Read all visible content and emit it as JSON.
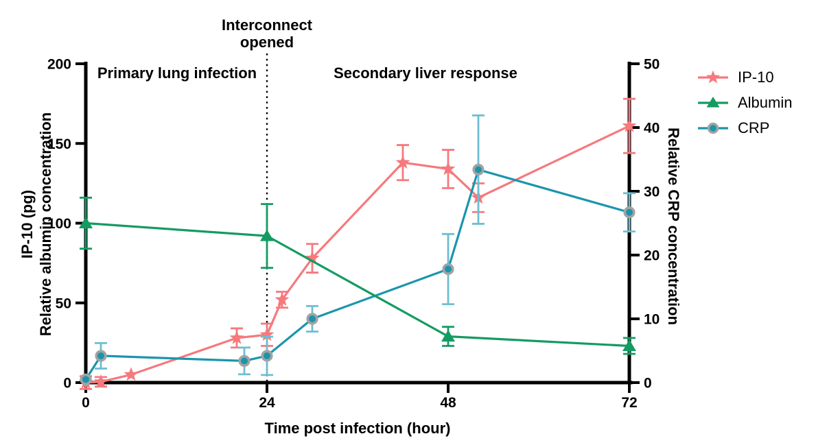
{
  "chart_data": {
    "type": "line",
    "title": "",
    "xlabel": "Time post infection (hour)",
    "ylabel_left_line1": "IP-10 (pg)",
    "ylabel_left_line2": "Relative albumin concentration",
    "ylabel_right": "Relative CRP concentration",
    "xlim": [
      0,
      72
    ],
    "x_ticks": [
      0,
      24,
      48,
      72
    ],
    "ylim_left": [
      0,
      200
    ],
    "yticks_left": [
      0,
      50,
      100,
      150,
      200
    ],
    "ylim_right": [
      0,
      50
    ],
    "yticks_right": [
      0,
      10,
      20,
      30,
      40,
      50
    ],
    "grid": false,
    "legend_position": "top-right",
    "annotations": {
      "region_left": "Primary lung infection",
      "region_right": "Secondary liver response",
      "vline_x": 24,
      "vline_style": "dotted",
      "vline_label_line1": "Interconnect",
      "vline_label_line2": "opened"
    },
    "series": [
      {
        "name": "IP-10",
        "axis": "left",
        "marker": "star",
        "color": "#F5797D",
        "points": [
          {
            "x": 0,
            "y": 0,
            "err": 4
          },
          {
            "x": 2,
            "y": 0.5,
            "err": 3
          },
          {
            "x": 6,
            "y": 5,
            "err": 0
          },
          {
            "x": 20,
            "y": 28,
            "err": 6
          },
          {
            "x": 24,
            "y": 30,
            "err": 7
          },
          {
            "x": 26,
            "y": 52,
            "err": 5
          },
          {
            "x": 30,
            "y": 78,
            "err": 9
          },
          {
            "x": 42,
            "y": 138,
            "err": 11
          },
          {
            "x": 48,
            "y": 134,
            "err": 12
          },
          {
            "x": 52,
            "y": 116,
            "err": 9
          },
          {
            "x": 72,
            "y": 161,
            "err": 17
          }
        ]
      },
      {
        "name": "Albumin",
        "axis": "left",
        "marker": "triangle",
        "color": "#149B62",
        "points": [
          {
            "x": 0,
            "y": 100,
            "err": 16
          },
          {
            "x": 24,
            "y": 92,
            "err": 20
          },
          {
            "x": 48,
            "y": 29,
            "err": 6
          },
          {
            "x": 72,
            "y": 23,
            "err": 5
          }
        ]
      },
      {
        "name": "CRP",
        "axis": "right",
        "marker": "circle",
        "color": "#1B95AC",
        "error_color": "#6EBED1",
        "marker_ring_color": "#A3A3A3",
        "points": [
          {
            "x": 0,
            "y": 0.5,
            "err": 0
          },
          {
            "x": 2,
            "y": 4.2,
            "err": 2
          },
          {
            "x": 21,
            "y": 3.4,
            "err": 2.1
          },
          {
            "x": 24,
            "y": 4.2,
            "err": 3
          },
          {
            "x": 30,
            "y": 10,
            "err": 2
          },
          {
            "x": 48,
            "y": 17.8,
            "err": 5.5
          },
          {
            "x": 52,
            "y": 33.4,
            "err": 8.5
          },
          {
            "x": 72,
            "y": 26.7,
            "err": 3
          }
        ]
      }
    ]
  }
}
